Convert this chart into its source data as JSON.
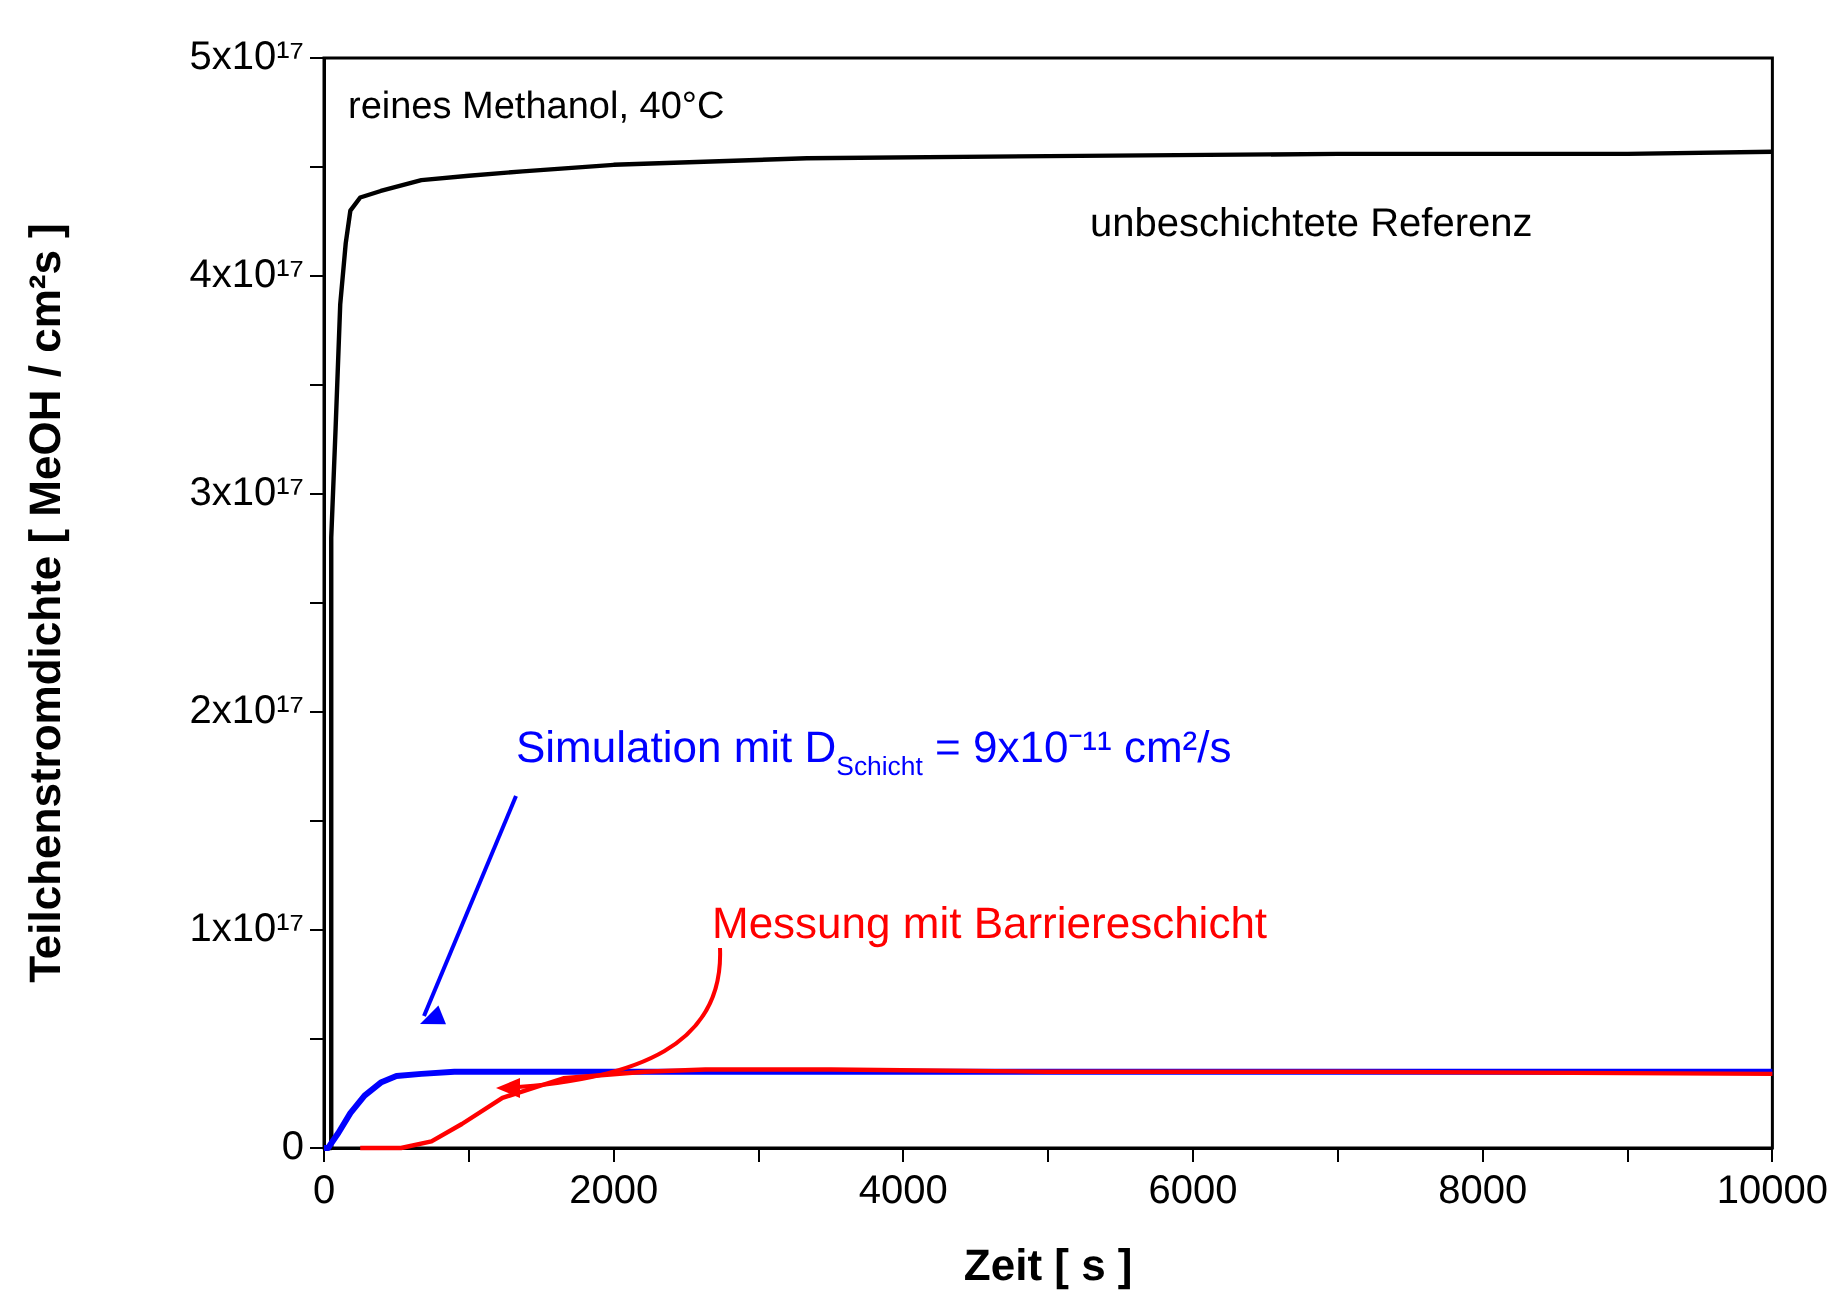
{
  "chart_data": {
    "type": "line",
    "title": "reines Methanol, 40°C",
    "xlabel": "Zeit [ s ]",
    "ylabel": "Teilchenstromdichte [ MeOH / cm²s ]",
    "xlim": [
      0,
      10000
    ],
    "xticks": [
      0,
      {
        "value": 1000,
        "label": null
      },
      2000,
      {
        "value": 3000,
        "label": null
      },
      4000,
      {
        "value": 5000,
        "label": null
      },
      6000,
      {
        "value": 7000,
        "label": null
      },
      8000,
      {
        "value": 9000,
        "label": null
      },
      10000
    ],
    "ylim": [
      0,
      5e+17
    ],
    "yticks": [
      {
        "value": 0,
        "label": "0"
      },
      {
        "value": 5e+16,
        "label": null
      },
      {
        "value": 1e+17,
        "label": "1x10¹⁷"
      },
      {
        "value": 1.5e+17,
        "label": null
      },
      {
        "value": 2e+17,
        "label": "2x10¹⁷"
      },
      {
        "value": 2.5e+17,
        "label": null
      },
      {
        "value": 3e+17,
        "label": "3x10¹⁷"
      },
      {
        "value": 3.5e+17,
        "label": null
      },
      {
        "value": 4e+17,
        "label": "4x10¹⁷"
      },
      {
        "value": 4.5e+17,
        "label": null
      },
      {
        "value": 5e+17,
        "label": "5x10¹⁷"
      }
    ],
    "grid": false,
    "legend": false,
    "marker": "none",
    "line_style": "solid",
    "series": [
      {
        "name": "unbeschichtete Referenz",
        "color": "#000000",
        "x": [
          0,
          45,
          50,
          80,
          112,
          150,
          182,
          250,
          392,
          672,
          1000,
          1372,
          2000,
          3333,
          5000,
          7000,
          9000,
          10000
        ],
        "values": [
          0,
          0,
          2.8e+17,
          3.3e+17,
          3.87e+17,
          4.15e+17,
          4.3e+17,
          4.36e+17,
          4.39e+17,
          4.44e+17,
          4.46e+17,
          4.48e+17,
          4.51e+17,
          4.54e+17,
          4.55e+17,
          4.56e+17,
          4.56e+17,
          4.57e+17
        ]
      },
      {
        "name": "Simulation mit D$_{Schicht}$ = 9x10⁻¹¹ cm²/s",
        "color": "#0000ff",
        "x": [
          0,
          28,
          100,
          182,
          280,
          392,
          500,
          672,
          900,
          1092,
          2000,
          4000,
          6000,
          8000,
          10000
        ],
        "values": [
          0,
          0,
          7000000000000000.0,
          1.6e+16,
          2.4e+16,
          3e+16,
          3.3e+16,
          3.4e+16,
          3.5e+16,
          3.5e+16,
          3.5e+16,
          3.5e+16,
          3.5e+16,
          3.5e+16,
          3.5e+16
        ]
      },
      {
        "name": "Messung mit Barriereschicht",
        "color": "#ff0000",
        "x": [
          250,
          532,
          742,
          952,
          1232,
          1653,
          2213,
          2633,
          3500,
          5000,
          7000,
          10000
        ],
        "values": [
          0,
          0,
          3000000000000000.0,
          1.1e+16,
          2.3e+16,
          3.2e+16,
          3.5e+16,
          3.6e+16,
          3.6e+16,
          3.5e+16,
          3.5e+16,
          3.4e+16
        ]
      }
    ]
  }
}
